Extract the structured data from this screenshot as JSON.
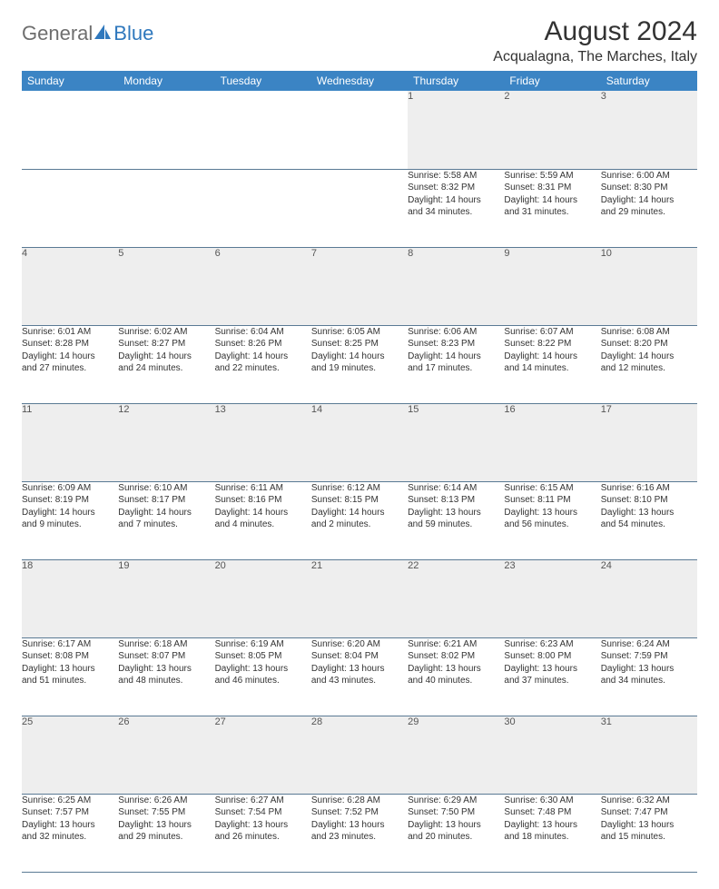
{
  "logo": {
    "part1": "General",
    "part2": "Blue"
  },
  "title": "August 2024",
  "location": "Acqualagna, The Marches, Italy",
  "colors": {
    "header_bg": "#3b84c4",
    "header_fg": "#ffffff",
    "daynum_bg": "#eeeeee",
    "rule": "#5a7a94",
    "logo_gray": "#6e6e6e",
    "logo_blue": "#2f78bd"
  },
  "weekdays": [
    "Sunday",
    "Monday",
    "Tuesday",
    "Wednesday",
    "Thursday",
    "Friday",
    "Saturday"
  ],
  "weeks": [
    [
      null,
      null,
      null,
      null,
      {
        "n": "1",
        "sr": "Sunrise: 5:58 AM",
        "ss": "Sunset: 8:32 PM",
        "dl1": "Daylight: 14 hours",
        "dl2": "and 34 minutes."
      },
      {
        "n": "2",
        "sr": "Sunrise: 5:59 AM",
        "ss": "Sunset: 8:31 PM",
        "dl1": "Daylight: 14 hours",
        "dl2": "and 31 minutes."
      },
      {
        "n": "3",
        "sr": "Sunrise: 6:00 AM",
        "ss": "Sunset: 8:30 PM",
        "dl1": "Daylight: 14 hours",
        "dl2": "and 29 minutes."
      }
    ],
    [
      {
        "n": "4",
        "sr": "Sunrise: 6:01 AM",
        "ss": "Sunset: 8:28 PM",
        "dl1": "Daylight: 14 hours",
        "dl2": "and 27 minutes."
      },
      {
        "n": "5",
        "sr": "Sunrise: 6:02 AM",
        "ss": "Sunset: 8:27 PM",
        "dl1": "Daylight: 14 hours",
        "dl2": "and 24 minutes."
      },
      {
        "n": "6",
        "sr": "Sunrise: 6:04 AM",
        "ss": "Sunset: 8:26 PM",
        "dl1": "Daylight: 14 hours",
        "dl2": "and 22 minutes."
      },
      {
        "n": "7",
        "sr": "Sunrise: 6:05 AM",
        "ss": "Sunset: 8:25 PM",
        "dl1": "Daylight: 14 hours",
        "dl2": "and 19 minutes."
      },
      {
        "n": "8",
        "sr": "Sunrise: 6:06 AM",
        "ss": "Sunset: 8:23 PM",
        "dl1": "Daylight: 14 hours",
        "dl2": "and 17 minutes."
      },
      {
        "n": "9",
        "sr": "Sunrise: 6:07 AM",
        "ss": "Sunset: 8:22 PM",
        "dl1": "Daylight: 14 hours",
        "dl2": "and 14 minutes."
      },
      {
        "n": "10",
        "sr": "Sunrise: 6:08 AM",
        "ss": "Sunset: 8:20 PM",
        "dl1": "Daylight: 14 hours",
        "dl2": "and 12 minutes."
      }
    ],
    [
      {
        "n": "11",
        "sr": "Sunrise: 6:09 AM",
        "ss": "Sunset: 8:19 PM",
        "dl1": "Daylight: 14 hours",
        "dl2": "and 9 minutes."
      },
      {
        "n": "12",
        "sr": "Sunrise: 6:10 AM",
        "ss": "Sunset: 8:17 PM",
        "dl1": "Daylight: 14 hours",
        "dl2": "and 7 minutes."
      },
      {
        "n": "13",
        "sr": "Sunrise: 6:11 AM",
        "ss": "Sunset: 8:16 PM",
        "dl1": "Daylight: 14 hours",
        "dl2": "and 4 minutes."
      },
      {
        "n": "14",
        "sr": "Sunrise: 6:12 AM",
        "ss": "Sunset: 8:15 PM",
        "dl1": "Daylight: 14 hours",
        "dl2": "and 2 minutes."
      },
      {
        "n": "15",
        "sr": "Sunrise: 6:14 AM",
        "ss": "Sunset: 8:13 PM",
        "dl1": "Daylight: 13 hours",
        "dl2": "and 59 minutes."
      },
      {
        "n": "16",
        "sr": "Sunrise: 6:15 AM",
        "ss": "Sunset: 8:11 PM",
        "dl1": "Daylight: 13 hours",
        "dl2": "and 56 minutes."
      },
      {
        "n": "17",
        "sr": "Sunrise: 6:16 AM",
        "ss": "Sunset: 8:10 PM",
        "dl1": "Daylight: 13 hours",
        "dl2": "and 54 minutes."
      }
    ],
    [
      {
        "n": "18",
        "sr": "Sunrise: 6:17 AM",
        "ss": "Sunset: 8:08 PM",
        "dl1": "Daylight: 13 hours",
        "dl2": "and 51 minutes."
      },
      {
        "n": "19",
        "sr": "Sunrise: 6:18 AM",
        "ss": "Sunset: 8:07 PM",
        "dl1": "Daylight: 13 hours",
        "dl2": "and 48 minutes."
      },
      {
        "n": "20",
        "sr": "Sunrise: 6:19 AM",
        "ss": "Sunset: 8:05 PM",
        "dl1": "Daylight: 13 hours",
        "dl2": "and 46 minutes."
      },
      {
        "n": "21",
        "sr": "Sunrise: 6:20 AM",
        "ss": "Sunset: 8:04 PM",
        "dl1": "Daylight: 13 hours",
        "dl2": "and 43 minutes."
      },
      {
        "n": "22",
        "sr": "Sunrise: 6:21 AM",
        "ss": "Sunset: 8:02 PM",
        "dl1": "Daylight: 13 hours",
        "dl2": "and 40 minutes."
      },
      {
        "n": "23",
        "sr": "Sunrise: 6:23 AM",
        "ss": "Sunset: 8:00 PM",
        "dl1": "Daylight: 13 hours",
        "dl2": "and 37 minutes."
      },
      {
        "n": "24",
        "sr": "Sunrise: 6:24 AM",
        "ss": "Sunset: 7:59 PM",
        "dl1": "Daylight: 13 hours",
        "dl2": "and 34 minutes."
      }
    ],
    [
      {
        "n": "25",
        "sr": "Sunrise: 6:25 AM",
        "ss": "Sunset: 7:57 PM",
        "dl1": "Daylight: 13 hours",
        "dl2": "and 32 minutes."
      },
      {
        "n": "26",
        "sr": "Sunrise: 6:26 AM",
        "ss": "Sunset: 7:55 PM",
        "dl1": "Daylight: 13 hours",
        "dl2": "and 29 minutes."
      },
      {
        "n": "27",
        "sr": "Sunrise: 6:27 AM",
        "ss": "Sunset: 7:54 PM",
        "dl1": "Daylight: 13 hours",
        "dl2": "and 26 minutes."
      },
      {
        "n": "28",
        "sr": "Sunrise: 6:28 AM",
        "ss": "Sunset: 7:52 PM",
        "dl1": "Daylight: 13 hours",
        "dl2": "and 23 minutes."
      },
      {
        "n": "29",
        "sr": "Sunrise: 6:29 AM",
        "ss": "Sunset: 7:50 PM",
        "dl1": "Daylight: 13 hours",
        "dl2": "and 20 minutes."
      },
      {
        "n": "30",
        "sr": "Sunrise: 6:30 AM",
        "ss": "Sunset: 7:48 PM",
        "dl1": "Daylight: 13 hours",
        "dl2": "and 18 minutes."
      },
      {
        "n": "31",
        "sr": "Sunrise: 6:32 AM",
        "ss": "Sunset: 7:47 PM",
        "dl1": "Daylight: 13 hours",
        "dl2": "and 15 minutes."
      }
    ]
  ]
}
